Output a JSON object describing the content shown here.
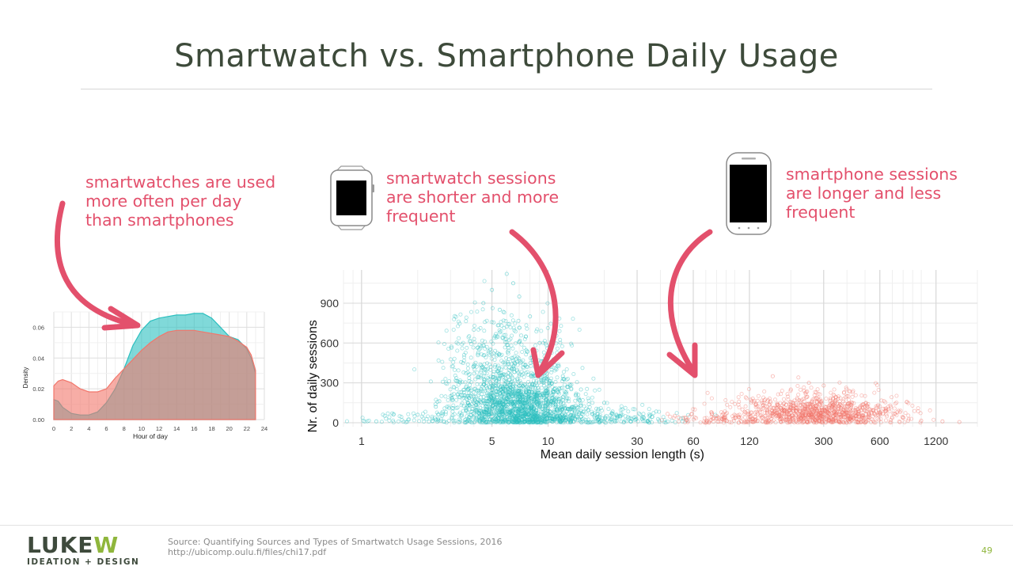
{
  "slide": {
    "title": "Smartwatch vs. Smartphone Daily Usage",
    "page_number": "49"
  },
  "callouts": {
    "left": [
      "smartwatches are used",
      "more often per day",
      "than smartphones"
    ],
    "middle": [
      "smartwatch sessions",
      "are shorter and more",
      "frequent"
    ],
    "right": [
      "smartphone sessions",
      "are longer and less",
      "frequent"
    ]
  },
  "icons": {
    "watch": "smartwatch-icon",
    "phone": "smartphone-icon",
    "arrow": "curved-arrow-icon"
  },
  "colors": {
    "accent": "#e3506c",
    "smartwatch": "#2bbfbf",
    "smartphone": "#f2766b",
    "logo_green": "#8fb63c",
    "logo_dark": "#3e4a3c"
  },
  "footer": {
    "logo_text": "LUKEW",
    "logo_tagline": "IDEATION + DESIGN",
    "source_line1": "Source: Quantifying Sources and Types of Smartwatch Usage Sessions, 2016",
    "source_line2": "http://ubicomp.oulu.fi/files/chi17.pdf"
  },
  "chart_data": [
    {
      "type": "area",
      "title": "",
      "xlabel": "Hour of day",
      "ylabel": "Density",
      "xlim": [
        0,
        24
      ],
      "ylim": [
        0,
        0.07
      ],
      "x_ticks": [
        "0",
        "2",
        "4",
        "6",
        "8",
        "10",
        "12",
        "14",
        "16",
        "18",
        "20",
        "22",
        "24"
      ],
      "y_ticks": [
        "0.00",
        "0.02",
        "0.04",
        "0.06"
      ],
      "grid": true,
      "legend": "none",
      "series": [
        {
          "color": "#2bbfbf",
          "x": [
            0,
            0.5,
            1,
            2,
            3,
            4,
            5,
            6,
            7,
            8,
            9,
            10,
            11,
            12,
            13,
            14,
            15,
            16,
            17,
            18,
            19,
            20,
            21,
            22,
            22.5,
            23
          ],
          "y": [
            0.013,
            0.012,
            0.008,
            0.004,
            0.003,
            0.003,
            0.005,
            0.011,
            0.02,
            0.033,
            0.048,
            0.058,
            0.064,
            0.066,
            0.067,
            0.068,
            0.068,
            0.069,
            0.069,
            0.066,
            0.06,
            0.054,
            0.052,
            0.046,
            0.04,
            0.03
          ]
        },
        {
          "color": "#f2766b",
          "x": [
            0,
            0.5,
            1,
            2,
            3,
            4,
            5,
            6,
            7,
            8,
            9,
            10,
            11,
            12,
            13,
            14,
            15,
            16,
            17,
            18,
            19,
            20,
            21,
            22,
            22.5,
            23
          ],
          "y": [
            0.022,
            0.025,
            0.026,
            0.024,
            0.02,
            0.018,
            0.018,
            0.02,
            0.027,
            0.033,
            0.039,
            0.045,
            0.05,
            0.054,
            0.057,
            0.058,
            0.058,
            0.058,
            0.057,
            0.056,
            0.055,
            0.054,
            0.051,
            0.047,
            0.042,
            0.032
          ]
        }
      ]
    },
    {
      "type": "scatter",
      "title": "",
      "xlabel": "Mean daily session length (s)",
      "ylabel": "Nr. of daily sessions",
      "x_scale": "log",
      "xlim": [
        0.8,
        2000
      ],
      "ylim": [
        -30,
        1150
      ],
      "x_ticks": [
        1,
        5,
        10,
        30,
        60,
        120,
        300,
        600,
        1200
      ],
      "y_ticks": [
        0,
        300,
        600,
        900
      ],
      "grid": true,
      "legend": "none",
      "series": [
        {
          "color": "#2bbfbf",
          "points": [
            [
              3,
              200
            ],
            [
              3.5,
              450
            ],
            [
              4,
              700
            ],
            [
              4.5,
              900
            ],
            [
              5,
              1000
            ],
            [
              5.5,
              850
            ],
            [
              6,
              1120
            ],
            [
              6.5,
              1050
            ],
            [
              7,
              950
            ],
            [
              8,
              800
            ],
            [
              9,
              600
            ],
            [
              10,
              500
            ],
            [
              12,
              350
            ],
            [
              15,
              250
            ],
            [
              20,
              150
            ],
            [
              25,
              100
            ],
            [
              35,
              50
            ],
            [
              1.2,
              10
            ],
            [
              2,
              60
            ],
            [
              2.5,
              120
            ]
          ],
          "clusters": [
            {
              "center": [
                7,
                120
              ],
              "spread_log10": 0.17,
              "spread_y": 110,
              "count": 1400
            },
            {
              "center": [
                6,
                380
              ],
              "spread_log10": 0.17,
              "spread_y": 160,
              "count": 450
            },
            {
              "center": [
                6,
                700
              ],
              "spread_log10": 0.16,
              "spread_y": 150,
              "count": 90
            },
            {
              "center": [
                18,
                40
              ],
              "spread_log10": 0.23,
              "spread_y": 40,
              "count": 250
            },
            {
              "center": [
                2.5,
                30
              ],
              "spread_log10": 0.22,
              "spread_y": 30,
              "count": 80
            }
          ]
        },
        {
          "color": "#f2766b",
          "points": [
            [
              50,
              40
            ],
            [
              80,
              50
            ],
            [
              110,
              100
            ],
            [
              140,
              150
            ],
            [
              160,
              350
            ],
            [
              200,
              250
            ],
            [
              250,
              300
            ],
            [
              300,
              280
            ],
            [
              400,
              200
            ],
            [
              500,
              120
            ],
            [
              600,
              80
            ],
            [
              800,
              40
            ],
            [
              1000,
              15
            ],
            [
              1300,
              10
            ],
            [
              1600,
              5
            ]
          ],
          "clusters": [
            {
              "center": [
                300,
                60
              ],
              "spread_log10": 0.22,
              "spread_y": 45,
              "count": 700
            },
            {
              "center": [
                250,
                150
              ],
              "spread_log10": 0.22,
              "spread_y": 65,
              "count": 280
            },
            {
              "center": [
                90,
                30
              ],
              "spread_log10": 0.16,
              "spread_y": 28,
              "count": 110
            }
          ]
        }
      ]
    }
  ]
}
